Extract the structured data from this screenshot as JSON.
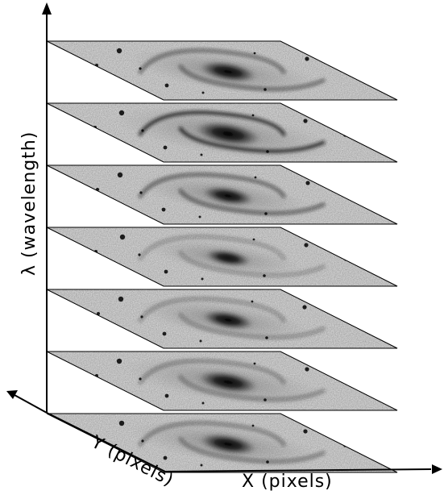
{
  "figure": {
    "y_axis_label": "λ (wavelength)",
    "depth_axis_label": "Y (pixels)",
    "x_axis_label": "X (pixels)",
    "slice_count": 7,
    "slice_fill": "#e6e6e6",
    "ink_color": "#000000"
  }
}
